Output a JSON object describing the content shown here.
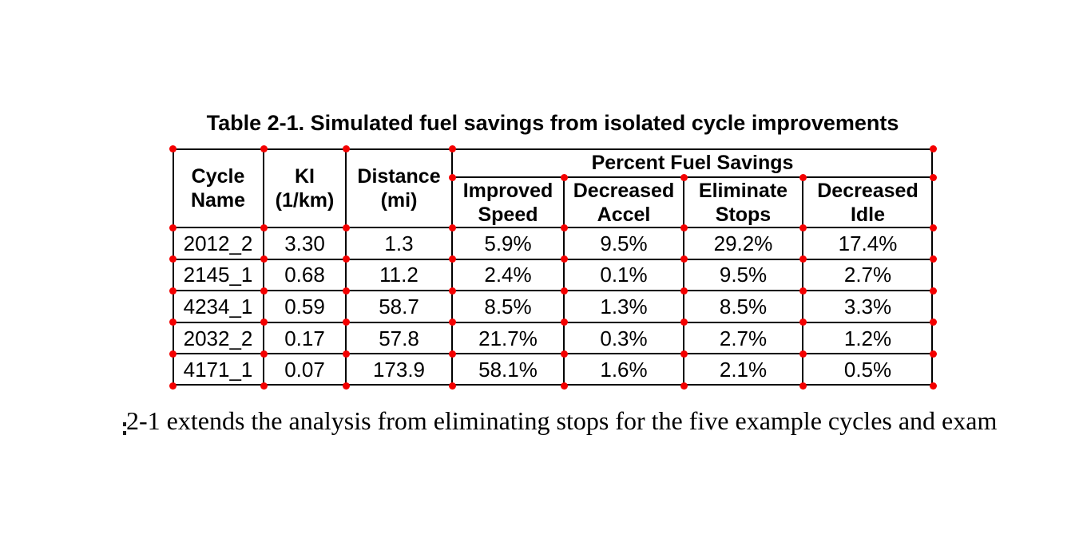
{
  "page": {
    "background_color": "#ffffff"
  },
  "title": "Table 2-1. Simulated fuel savings from isolated cycle improvements",
  "table": {
    "marker_color": "#f40000",
    "border_color": "#000000",
    "group_header": "Percent Fuel Savings",
    "headers": [
      {
        "line1": "Cycle",
        "line2": "Name"
      },
      {
        "line1": "KI",
        "line2": "(1/km)"
      },
      {
        "line1": "Distance",
        "line2": "(mi)"
      },
      {
        "line1": "Improved",
        "line2": "Speed"
      },
      {
        "line1": "Decreased",
        "line2": "Accel"
      },
      {
        "line1": "Eliminate",
        "line2": "Stops"
      },
      {
        "line1": "Decreased",
        "line2": "Idle"
      }
    ],
    "rows": [
      {
        "cycle": "2012_2",
        "ki": "3.30",
        "distance": "1.3",
        "improved_speed": "5.9%",
        "decreased_accel": "9.5%",
        "eliminate_stops": "29.2%",
        "decreased_idle": "17.4%"
      },
      {
        "cycle": "2145_1",
        "ki": "0.68",
        "distance": "11.2",
        "improved_speed": "2.4%",
        "decreased_accel": "0.1%",
        "eliminate_stops": "9.5%",
        "decreased_idle": "2.7%"
      },
      {
        "cycle": "4234_1",
        "ki": "0.59",
        "distance": "58.7",
        "improved_speed": "8.5%",
        "decreased_accel": "1.3%",
        "eliminate_stops": "8.5%",
        "decreased_idle": "3.3%"
      },
      {
        "cycle": "2032_2",
        "ki": "0.17",
        "distance": "57.8",
        "improved_speed": "21.7%",
        "decreased_accel": "0.3%",
        "eliminate_stops": "2.7%",
        "decreased_idle": "1.2%"
      },
      {
        "cycle": "4171_1",
        "ki": "0.07",
        "distance": "173.9",
        "improved_speed": "58.1%",
        "decreased_accel": "1.6%",
        "eliminate_stops": "2.1%",
        "decreased_idle": "0.5%"
      }
    ]
  },
  "caption_fragment": "2-1 extends the analysis from eliminating stops for the five example cycles and exam"
}
